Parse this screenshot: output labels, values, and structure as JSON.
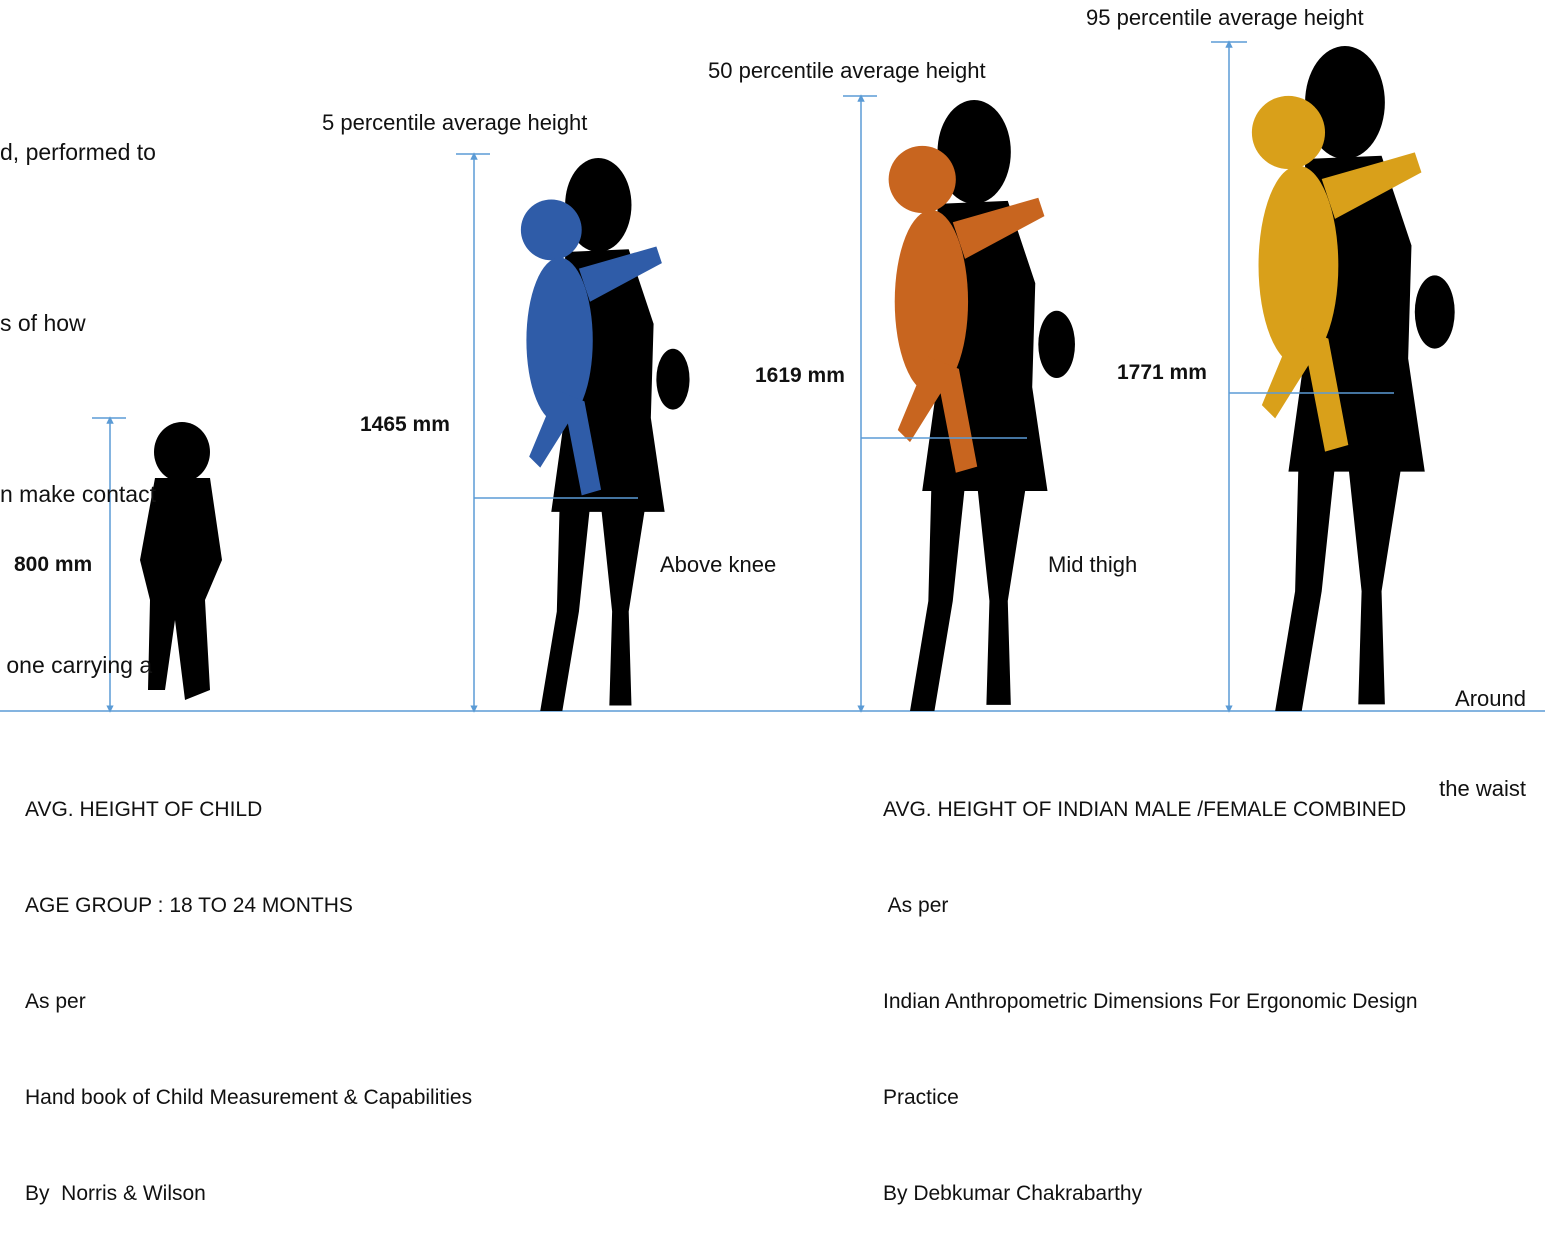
{
  "intro_lines": [
    "d, performed to",
    "s of how",
    "n make contact",
    " one carrying a"
  ],
  "child": {
    "height_label": "800 mm",
    "caption_lines": [
      "AVG. HEIGHT OF CHILD",
      "AGE GROUP : 18 TO 24 MONTHS",
      "As per",
      "Hand book of Child Measurement & Capabilities",
      "By  Norris & Wilson"
    ]
  },
  "figures": [
    {
      "percentile_label": "5 percentile average height",
      "height_label": "1465 mm",
      "contact_lines": [
        "Above knee"
      ]
    },
    {
      "percentile_label": "50 percentile average height",
      "height_label": "1619 mm",
      "contact_lines": [
        "Mid thigh"
      ]
    },
    {
      "percentile_label": "95 percentile average height",
      "height_label": "1771 mm",
      "contact_lines": [
        "Around",
        "the waist"
      ]
    }
  ],
  "adult_caption_lines": [
    "AVG. HEIGHT OF INDIAN MALE /FEMALE COMBINED",
    " As per",
    "Indian Anthropometric Dimensions For Ergonomic Design",
    "Practice",
    "By Debkumar Chakrabarthy"
  ]
}
